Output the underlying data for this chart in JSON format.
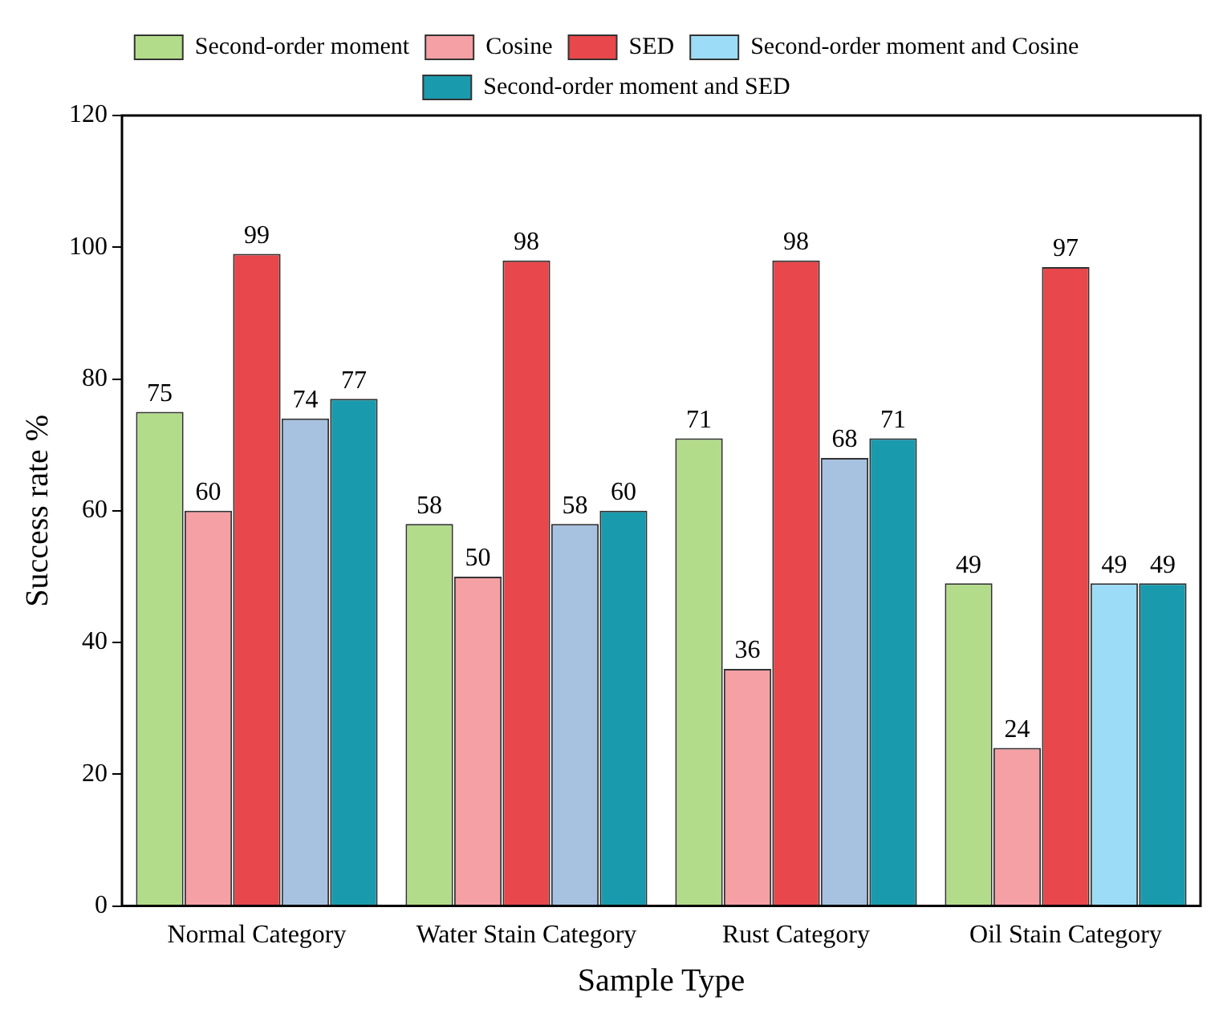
{
  "chart_data": {
    "type": "bar",
    "xlabel": "Sample Type",
    "ylabel": "Success rate %",
    "categories": [
      "Normal Category",
      "Water Stain Category",
      "Rust Category",
      "Oil Stain Category"
    ],
    "series": [
      {
        "name": "Second-order moment",
        "color": "#b3dc8a",
        "values": [
          75,
          58,
          71,
          49
        ]
      },
      {
        "name": "Cosine",
        "color": "#f4a0a4",
        "values": [
          60,
          50,
          36,
          24
        ]
      },
      {
        "name": "SED",
        "color": "#e8474b",
        "values": [
          99,
          98,
          98,
          97
        ]
      },
      {
        "name": "Second-order moment and Cosine",
        "color": "#9ddcf6",
        "colors": [
          "#a7c1e0",
          "#a7c1e0",
          "#a7c1e0",
          "#9ddcf6"
        ],
        "values": [
          74,
          58,
          68,
          49
        ]
      },
      {
        "name": "Second-order moment and SED",
        "color": "#1a9aad",
        "values": [
          77,
          60,
          71,
          49
        ]
      }
    ],
    "ylim": [
      0,
      120
    ],
    "yticks": [
      0,
      20,
      40,
      60,
      80,
      100,
      120
    ],
    "grid": false,
    "legend": "top",
    "data_labels": true
  }
}
